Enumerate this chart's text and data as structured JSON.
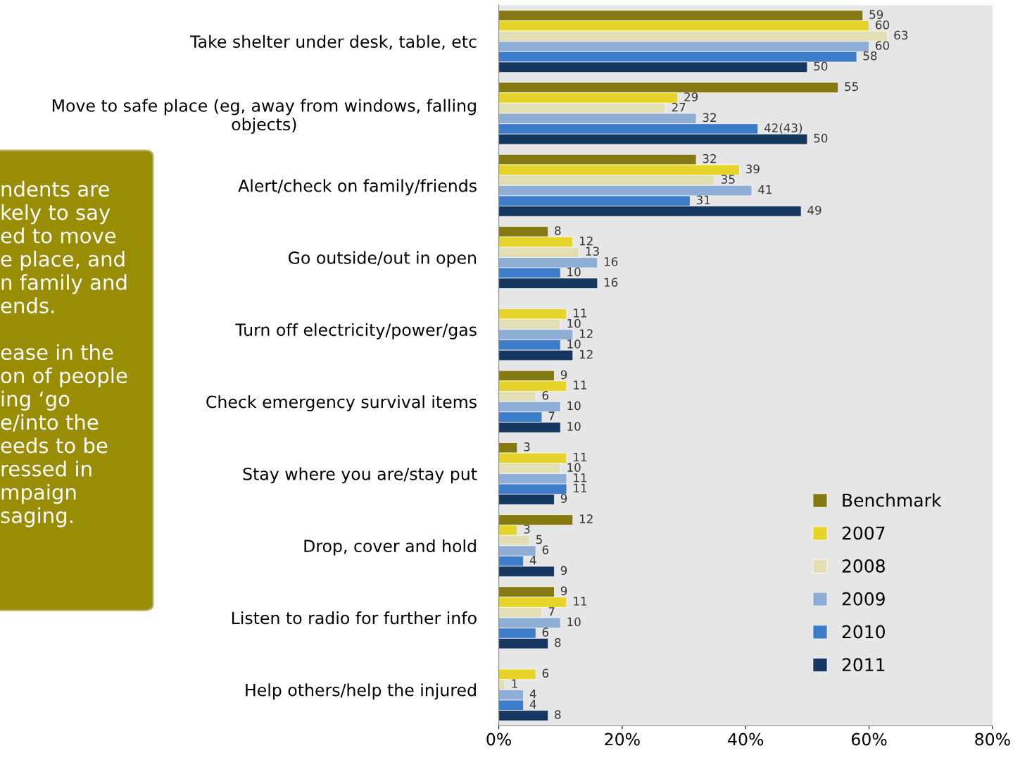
{
  "chart_data": {
    "type": "bar",
    "orientation": "horizontal",
    "categories": [
      "Take shelter under desk, table, etc",
      "Move to safe place (eg, away from windows, falling objects)",
      "Alert/check on family/friends",
      "Go outside/out in open",
      "Turn off electricity/power/gas",
      "Check emergency survival items",
      "Stay where you are/stay put",
      "Drop, cover and hold",
      "Listen to radio for further info",
      "Help others/help the injured"
    ],
    "series": [
      {
        "name": "Benchmark",
        "color": "#857a12",
        "values": [
          59,
          55,
          32,
          8,
          null,
          9,
          3,
          12,
          9,
          null
        ],
        "value_labels": [
          "59",
          "55",
          "32",
          "8",
          null,
          "9",
          "3",
          "12",
          "9",
          null
        ]
      },
      {
        "name": "2007",
        "color": "#e6d42a",
        "values": [
          60,
          29,
          39,
          12,
          11,
          11,
          11,
          3,
          11,
          6
        ],
        "value_labels": [
          "60",
          "29",
          "39",
          "12",
          "11",
          "11",
          "11",
          "3",
          "11",
          "6"
        ]
      },
      {
        "name": "2008",
        "color": "#e3dfb5",
        "values": [
          63,
          27,
          35,
          13,
          10,
          6,
          10,
          5,
          7,
          1
        ],
        "value_labels": [
          "63",
          "27",
          "35",
          "13",
          "10",
          "6",
          "10",
          "5",
          "7",
          "1"
        ]
      },
      {
        "name": "2009",
        "color": "#8eaed6",
        "values": [
          60,
          32,
          41,
          16,
          12,
          10,
          11,
          6,
          10,
          4
        ],
        "value_labels": [
          "60",
          "32",
          "41",
          "16",
          "12",
          "10",
          "11",
          "6",
          "10",
          "4"
        ]
      },
      {
        "name": "2010",
        "color": "#3d7cc9",
        "values": [
          58,
          42,
          31,
          10,
          10,
          7,
          11,
          4,
          6,
          4
        ],
        "value_labels": [
          "58",
          "42(43)",
          "31",
          "10",
          "10",
          "7",
          "11",
          "4",
          "6",
          "4"
        ]
      },
      {
        "name": "2011",
        "color": "#14365f",
        "values": [
          50,
          50,
          49,
          16,
          12,
          10,
          9,
          9,
          8,
          8
        ],
        "value_labels": [
          "50",
          "50",
          "49",
          "16",
          "12",
          "10",
          "9",
          "9",
          "8",
          "8"
        ]
      }
    ],
    "xlim": [
      0,
      80
    ],
    "xticks": [
      {
        "value": 0,
        "label": "0%"
      },
      {
        "value": 20,
        "label": "20%"
      },
      {
        "value": 40,
        "label": "40%"
      },
      {
        "value": 60,
        "label": "60%"
      },
      {
        "value": 80,
        "label": "80%"
      }
    ],
    "grid": false,
    "legend": "bottom right",
    "annotations": [
      "ndents are\nkely to say\ned to move\ne place, and\nn family and\nends.\n\nease in the\non of people\ning ‘go\ne/into the\needs to be\nressed in\nmpaign\nsaging."
    ]
  }
}
